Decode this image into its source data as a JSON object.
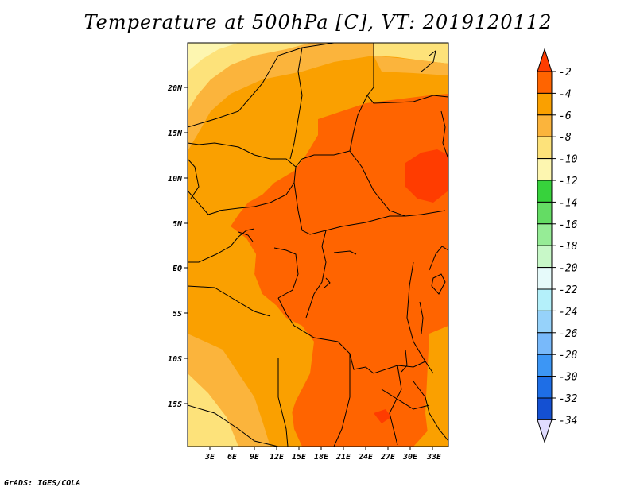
{
  "title": "Temperature at 500hPa [C], VT: 2019120112",
  "footer": "GrADS: IGES/COLA",
  "map": {
    "lon_ticks": [
      "3E",
      "6E",
      "9E",
      "12E",
      "15E",
      "18E",
      "21E",
      "24E",
      "27E",
      "30E",
      "33E"
    ],
    "lat_ticks": [
      "20N",
      "15N",
      "10N",
      "5N",
      "EQ",
      "5S",
      "10S",
      "15S"
    ],
    "fill_colors": {
      "c_2_4": "#ff6400",
      "c_4_6": "#faa000",
      "c_6_8": "#fbb43c",
      "c_8_10": "#fde27a",
      "c_10_12": "#fdf6b0"
    }
  },
  "colorbar": {
    "labels": [
      "-2",
      "-4",
      "-6",
      "-8",
      "-10",
      "-12",
      "-14",
      "-16",
      "-18",
      "-20",
      "-22",
      "-24",
      "-26",
      "-28",
      "-30",
      "-32",
      "-34"
    ],
    "colors": [
      "#ff3c00",
      "#ff6400",
      "#faa000",
      "#fbb43c",
      "#fde27a",
      "#fdf6b0",
      "#37d23c",
      "#64dc64",
      "#96ec96",
      "#c8f8c8",
      "#e6fafa",
      "#b4f0fa",
      "#96d2fa",
      "#78b9fa",
      "#3c96f5",
      "#1e6ee6",
      "#1450d2",
      "#0a1e78",
      "#e0dcff"
    ]
  }
}
